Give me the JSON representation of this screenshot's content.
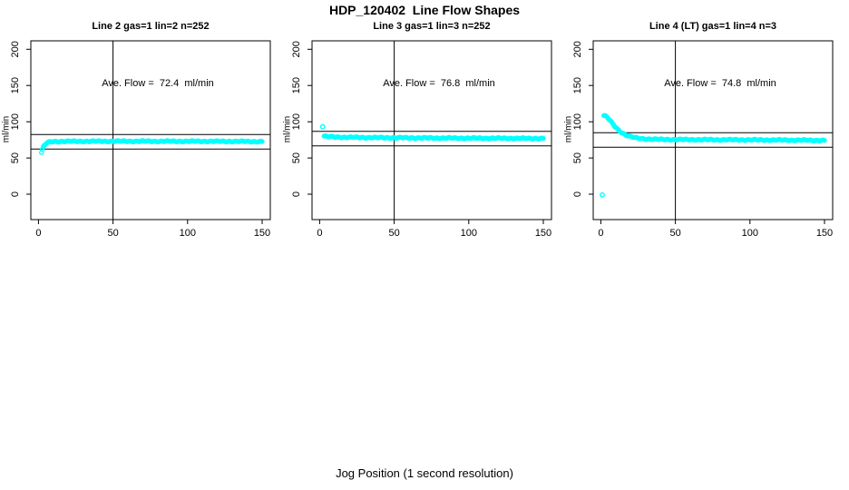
{
  "figure": {
    "title": "HDP_120402  Line Flow Shapes",
    "xlabel": "Jog Position (1 second resolution)",
    "ylabel": "ml/min"
  },
  "colors": {
    "points": "#00ffff",
    "axis": "#000000",
    "background": "#ffffff"
  },
  "chart_data": [
    {
      "type": "scatter",
      "title": "Line 2 gas=1 lin=2 n=252",
      "annotation": "Ave. Flow =  72.4  ml/min",
      "ave_flow_ml_min": 72.4,
      "n": 252,
      "xlim": [
        -5.1,
        155.5
      ],
      "ylim": [
        -35,
        211.6
      ],
      "xticks": [
        0,
        50,
        100,
        150
      ],
      "yticks": [
        0,
        50,
        100,
        150,
        200
      ],
      "hlines": [
        62.4,
        82.4
      ],
      "vline": 50,
      "outliers": [],
      "series": [
        {
          "name": "flow",
          "x_start": 2,
          "x_end": 150,
          "keypoints": [
            [
              2,
              57.5
            ],
            [
              3,
              64
            ],
            [
              4,
              67.5
            ],
            [
              5,
              69.5
            ],
            [
              6,
              71
            ],
            [
              8,
              72.2
            ],
            [
              10,
              72.6
            ],
            [
              15,
              72.9
            ],
            [
              30,
              73
            ],
            [
              60,
              73.1
            ],
            [
              100,
              73
            ],
            [
              130,
              72.9
            ],
            [
              150,
              72.6
            ]
          ]
        }
      ]
    },
    {
      "type": "scatter",
      "title": "Line 3 gas=1 lin=3 n=252",
      "annotation": "Ave. Flow =  76.8  ml/min",
      "ave_flow_ml_min": 76.8,
      "n": 252,
      "xlim": [
        -5.1,
        155.5
      ],
      "ylim": [
        -35,
        211.6
      ],
      "xticks": [
        0,
        50,
        100,
        150
      ],
      "yticks": [
        0,
        50,
        100,
        150,
        200
      ],
      "hlines": [
        66.8,
        86.8
      ],
      "vline": 50,
      "outliers": [
        [
          2,
          93
        ]
      ],
      "series": [
        {
          "name": "flow",
          "x_start": 3,
          "x_end": 150,
          "keypoints": [
            [
              3,
              80.2
            ],
            [
              4,
              79.8
            ],
            [
              6,
              79.4
            ],
            [
              10,
              79
            ],
            [
              15,
              78.7
            ],
            [
              20,
              78.5
            ],
            [
              30,
              78.2
            ],
            [
              50,
              77.9
            ],
            [
              70,
              77.6
            ],
            [
              100,
              77.3
            ],
            [
              130,
              77.1
            ],
            [
              150,
              76.9
            ]
          ]
        }
      ]
    },
    {
      "type": "scatter",
      "title": "Line 4 (LT) gas=1 lin=4 n=3",
      "annotation": "Ave. Flow =  74.8  ml/min",
      "ave_flow_ml_min": 74.8,
      "n": 3,
      "xlim": [
        -5.1,
        155.5
      ],
      "ylim": [
        -35,
        211.6
      ],
      "xticks": [
        0,
        50,
        100,
        150
      ],
      "yticks": [
        0,
        50,
        100,
        150,
        200
      ],
      "hlines": [
        64.8,
        84.8
      ],
      "vline": 50,
      "outliers": [
        [
          1,
          -1
        ]
      ],
      "series": [
        {
          "name": "flow",
          "x_start": 2,
          "x_end": 150,
          "keypoints": [
            [
              2,
              108.5
            ],
            [
              3,
              108
            ],
            [
              4,
              106.5
            ],
            [
              5,
              104.5
            ],
            [
              6,
              102
            ],
            [
              7,
              99.5
            ],
            [
              8,
              97
            ],
            [
              9,
              94.5
            ],
            [
              10,
              92.3
            ],
            [
              11,
              90.2
            ],
            [
              12,
              88.3
            ],
            [
              13,
              86.6
            ],
            [
              14,
              85.2
            ],
            [
              15,
              83.8
            ],
            [
              16,
              82.7
            ],
            [
              17,
              81.7
            ],
            [
              18,
              80.8
            ],
            [
              19,
              80
            ],
            [
              20,
              79.3
            ],
            [
              22,
              78.3
            ],
            [
              24,
              77.5
            ],
            [
              26,
              77
            ],
            [
              28,
              76.6
            ],
            [
              30,
              76.3
            ],
            [
              35,
              75.9
            ],
            [
              40,
              75.6
            ],
            [
              50,
              75.4
            ],
            [
              70,
              75.2
            ],
            [
              100,
              75
            ],
            [
              130,
              74.6
            ],
            [
              150,
              74.2
            ]
          ]
        }
      ]
    }
  ]
}
